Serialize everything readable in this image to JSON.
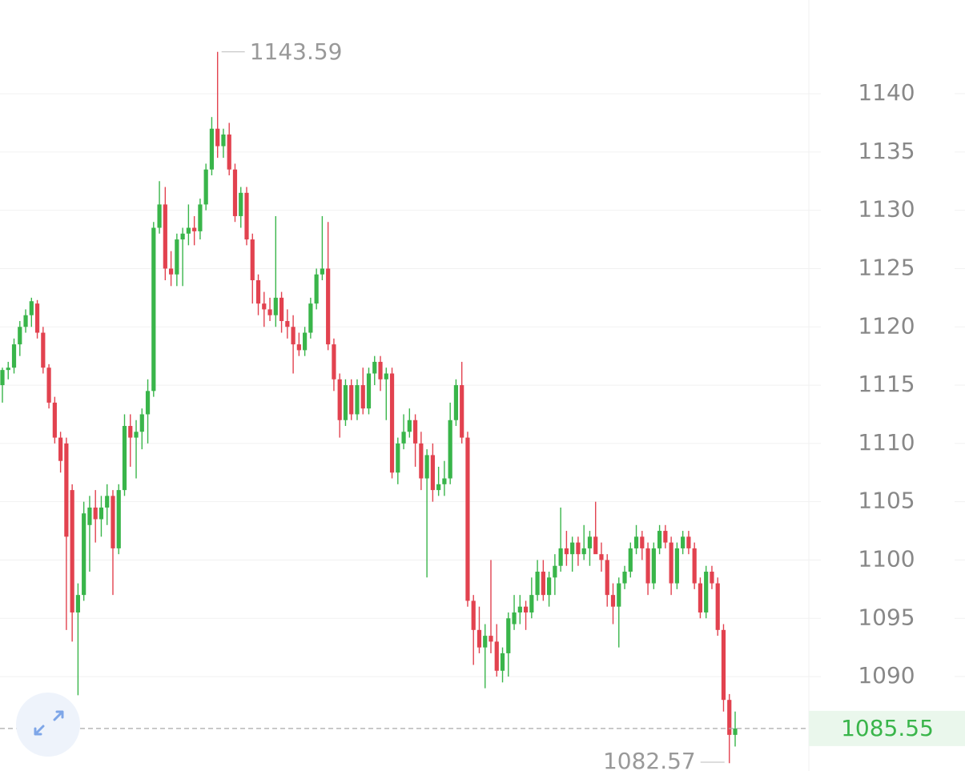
{
  "chart_data": {
    "type": "candlestick",
    "open": [
      1115,
      1116.3,
      1116.5,
      1118.5,
      1120,
      1121,
      1122,
      1119.5,
      1116.5,
      1113.5,
      1110.5,
      1110,
      1106,
      1095.5,
      1097,
      1103,
      1104.5,
      1103.5,
      1104.5,
      1105.5,
      1101,
      1106,
      1111.5,
      1110.5,
      1111,
      1112.5,
      1114.5,
      1128.5,
      1130.5,
      1125,
      1124.5,
      1127.5,
      1128,
      1128.5,
      1128.2,
      1130.5,
      1133.5,
      1137,
      1135.5,
      1136.5,
      1133.5,
      1129.5,
      1131.5,
      1127.5,
      1124,
      1122,
      1121.5,
      1121,
      1122.5,
      1120.5,
      1120,
      1118.5,
      1118,
      1119.5,
      1122,
      1124.5,
      1125,
      1118.5,
      1115.5,
      1112,
      1115,
      1112.5,
      1115,
      1113,
      1116,
      1117,
      1115.5,
      1116,
      1107.5,
      1110,
      1111,
      1112,
      1110,
      1107,
      1109,
      1106,
      1106.5,
      1107,
      1112,
      1115,
      1110.5,
      1096.5,
      1094,
      1092.5,
      1093.5,
      1093,
      1090.5,
      1092,
      1094.5,
      1095.5,
      1096,
      1095.5,
      1097,
      1099,
      1097,
      1098.5,
      1099.5,
      1101,
      1100.5,
      1101.5,
      1100.5,
      1101,
      1102,
      1100.5,
      1100,
      1097,
      1096,
      1098,
      1099,
      1101,
      1102,
      1101,
      1098,
      1101,
      1102.5,
      1101.5,
      1098,
      1101,
      1102,
      1101,
      1098,
      1095.5,
      1099,
      1098,
      1094,
      1088,
      1085
    ],
    "high": [
      1116.5,
      1117,
      1119,
      1120.5,
      1121.5,
      1122.5,
      1122.3,
      1120,
      1116.8,
      1114,
      1111,
      1110.5,
      1106.5,
      1098,
      1105,
      1105.5,
      1106,
      1105.5,
      1106.5,
      1106,
      1106.5,
      1112.5,
      1112.5,
      1112,
      1113,
      1115.5,
      1129,
      1132.5,
      1132,
      1126.5,
      1128,
      1128.5,
      1130.5,
      1129.5,
      1131,
      1134,
      1138,
      1143.59,
      1137,
      1137.5,
      1134,
      1132,
      1132,
      1128,
      1124.5,
      1123,
      1122.5,
      1129.5,
      1123,
      1121.5,
      1121,
      1119.5,
      1120,
      1122.5,
      1125,
      1129.5,
      1129,
      1119,
      1116,
      1115.5,
      1115.5,
      1115.5,
      1116.5,
      1116.5,
      1117.5,
      1117.5,
      1116.5,
      1116.5,
      1110.5,
      1112.5,
      1113,
      1112.5,
      1111,
      1109.5,
      1110,
      1108,
      1108.5,
      1113.5,
      1115.5,
      1117,
      1111,
      1097,
      1096,
      1094.5,
      1100,
      1094.5,
      1092.5,
      1095.5,
      1097,
      1097,
      1096.5,
      1098.5,
      1100,
      1100,
      1099,
      1100.5,
      1104.5,
      1102.5,
      1102,
      1102,
      1103,
      1102.5,
      1105,
      1101.5,
      1100.5,
      1098,
      1098.5,
      1099.5,
      1101.5,
      1103,
      1102.5,
      1101.5,
      1101.5,
      1103,
      1103,
      1102,
      1101.5,
      1102.5,
      1102.5,
      1101.5,
      1098.5,
      1099.5,
      1099.5,
      1098.5,
      1094.5,
      1088.5,
      1087
    ],
    "low": [
      1113.5,
      1115.5,
      1116,
      1117.5,
      1119.5,
      1120,
      1119,
      1116,
      1113,
      1110,
      1107.5,
      1094,
      1093,
      1088.4,
      1096.5,
      1099,
      1101.5,
      1102,
      1103,
      1097,
      1100.5,
      1105.5,
      1108,
      1107,
      1109.5,
      1110,
      1114,
      1128,
      1124,
      1123.5,
      1123.5,
      1123.5,
      1127,
      1127,
      1127.5,
      1130,
      1133,
      1134.5,
      1134.5,
      1133,
      1129,
      1128.5,
      1127,
      1122,
      1121,
      1120,
      1120.5,
      1120,
      1119.5,
      1119,
      1116,
      1117.5,
      1117.5,
      1119,
      1121.5,
      1124,
      1118,
      1114.5,
      1110.5,
      1111.5,
      1112,
      1112,
      1112.5,
      1112.5,
      1115,
      1114.5,
      1112,
      1107,
      1106.5,
      1109.5,
      1110.5,
      1108,
      1106,
      1098.5,
      1105,
      1105.5,
      1105.5,
      1106.5,
      1111.5,
      1110,
      1096,
      1091,
      1092,
      1089,
      1092,
      1090,
      1089.5,
      1090,
      1094,
      1094.5,
      1094,
      1095,
      1096.5,
      1096.5,
      1096,
      1097,
      1099,
      1099.5,
      1099,
      1099.5,
      1100,
      1099.5,
      1101,
      1099,
      1096,
      1094.5,
      1092.5,
      1097.5,
      1098.5,
      1100.5,
      1100,
      1097,
      1097.5,
      1100.5,
      1101,
      1097,
      1097.5,
      1100.5,
      1100.5,
      1097.5,
      1095,
      1095,
      1097.5,
      1093.5,
      1087,
      1082.57,
      1084
    ],
    "close": [
      1116.3,
      1116.5,
      1118.5,
      1120,
      1121,
      1122.2,
      1119.5,
      1116.5,
      1113.5,
      1110.5,
      1108.5,
      1102,
      1095.5,
      1097,
      1104,
      1104.5,
      1103.5,
      1104.5,
      1105.5,
      1101,
      1106,
      1111.5,
      1110.5,
      1111,
      1112.5,
      1114.5,
      1128.5,
      1130.5,
      1125,
      1124.5,
      1127.5,
      1128,
      1128.5,
      1128.2,
      1130.5,
      1133.5,
      1137,
      1135.5,
      1136.5,
      1133.5,
      1129.5,
      1131.5,
      1127.5,
      1124,
      1122,
      1121.5,
      1121,
      1122.5,
      1120.5,
      1120,
      1118.5,
      1118,
      1119.5,
      1122,
      1124.5,
      1125,
      1118.5,
      1115.5,
      1112,
      1115,
      1112.5,
      1115,
      1113,
      1116,
      1117,
      1115.5,
      1116,
      1107.5,
      1110,
      1111,
      1112,
      1110,
      1107,
      1109,
      1106,
      1106.5,
      1107,
      1112,
      1115,
      1110.5,
      1096.5,
      1094,
      1092.5,
      1093.5,
      1093,
      1090.5,
      1092,
      1095,
      1095.5,
      1096,
      1095.5,
      1097,
      1099,
      1097,
      1098.5,
      1099.5,
      1101,
      1100.5,
      1101.5,
      1100.5,
      1101,
      1102,
      1100.5,
      1100,
      1097,
      1096,
      1098,
      1099,
      1101,
      1102,
      1101,
      1098,
      1101,
      1102.5,
      1101.5,
      1098,
      1101,
      1102,
      1101,
      1098,
      1095.5,
      1099,
      1098,
      1094,
      1088,
      1085,
      1085.55
    ],
    "up_color": "#39b54a",
    "down_color": "#e2424f",
    "ylim": [
      1081.9,
      1148.04
    ],
    "yticks": [
      1090,
      1095,
      1100,
      1105,
      1110,
      1115,
      1120,
      1125,
      1130,
      1135,
      1140
    ],
    "grid": true
  }
}
